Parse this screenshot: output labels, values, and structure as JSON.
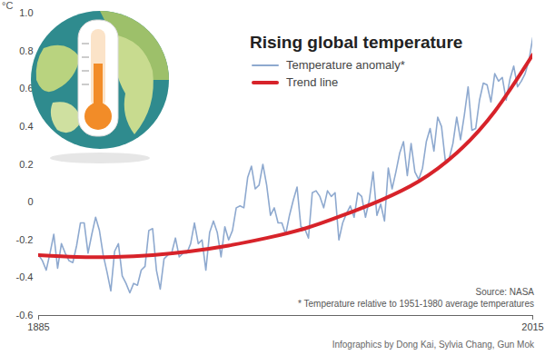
{
  "chart_data": {
    "type": "line",
    "title": "Rising global temperature",
    "y_label": "°C",
    "x": [
      1885,
      1886,
      1887,
      1888,
      1889,
      1890,
      1891,
      1892,
      1893,
      1894,
      1895,
      1896,
      1897,
      1898,
      1899,
      1900,
      1901,
      1902,
      1903,
      1904,
      1905,
      1906,
      1907,
      1908,
      1909,
      1910,
      1911,
      1912,
      1913,
      1914,
      1915,
      1916,
      1917,
      1918,
      1919,
      1920,
      1921,
      1922,
      1923,
      1924,
      1925,
      1926,
      1927,
      1928,
      1929,
      1930,
      1931,
      1932,
      1933,
      1934,
      1935,
      1936,
      1937,
      1938,
      1939,
      1940,
      1941,
      1942,
      1943,
      1944,
      1945,
      1946,
      1947,
      1948,
      1949,
      1950,
      1951,
      1952,
      1953,
      1954,
      1955,
      1956,
      1957,
      1958,
      1959,
      1960,
      1961,
      1962,
      1963,
      1964,
      1965,
      1966,
      1967,
      1968,
      1969,
      1970,
      1971,
      1972,
      1973,
      1974,
      1975,
      1976,
      1977,
      1978,
      1979,
      1980,
      1981,
      1982,
      1983,
      1984,
      1985,
      1986,
      1987,
      1988,
      1989,
      1990,
      1991,
      1992,
      1993,
      1994,
      1995,
      1996,
      1997,
      1998,
      1999,
      2000,
      2001,
      2002,
      2003,
      2004,
      2005,
      2006,
      2007,
      2008,
      2009,
      2010,
      2011,
      2012,
      2013,
      2014,
      2015
    ],
    "series": [
      {
        "name": "Temperature anomaly*",
        "color": "#8ea9cf",
        "line_style": "solid",
        "values": [
          -0.28,
          -0.31,
          -0.36,
          -0.27,
          -0.17,
          -0.35,
          -0.22,
          -0.27,
          -0.31,
          -0.32,
          -0.23,
          -0.11,
          -0.11,
          -0.27,
          -0.17,
          -0.08,
          -0.15,
          -0.28,
          -0.37,
          -0.47,
          -0.26,
          -0.22,
          -0.39,
          -0.43,
          -0.48,
          -0.43,
          -0.44,
          -0.36,
          -0.34,
          -0.15,
          -0.14,
          -0.36,
          -0.46,
          -0.3,
          -0.28,
          -0.27,
          -0.19,
          -0.29,
          -0.27,
          -0.27,
          -0.22,
          -0.11,
          -0.22,
          -0.2,
          -0.36,
          -0.16,
          -0.1,
          -0.16,
          -0.29,
          -0.13,
          -0.2,
          -0.15,
          -0.03,
          -0.02,
          -0.03,
          0.13,
          0.19,
          0.07,
          0.09,
          0.2,
          0.09,
          -0.07,
          -0.03,
          -0.11,
          -0.11,
          -0.17,
          -0.07,
          0.01,
          0.08,
          -0.13,
          -0.14,
          -0.19,
          0.05,
          0.06,
          0.03,
          -0.03,
          0.06,
          0.03,
          0.05,
          -0.2,
          -0.11,
          -0.06,
          -0.02,
          -0.08,
          0.05,
          0.03,
          -0.08,
          0.01,
          0.16,
          -0.07,
          -0.01,
          -0.1,
          0.18,
          0.07,
          0.16,
          0.26,
          0.32,
          0.14,
          0.31,
          0.16,
          0.12,
          0.18,
          0.32,
          0.39,
          0.27,
          0.45,
          0.4,
          0.22,
          0.23,
          0.31,
          0.45,
          0.33,
          0.46,
          0.61,
          0.38,
          0.39,
          0.54,
          0.63,
          0.62,
          0.53,
          0.68,
          0.64,
          0.66,
          0.54,
          0.65,
          0.72,
          0.61,
          0.64,
          0.68,
          0.75,
          0.87
        ]
      },
      {
        "name": "Trend line",
        "color": "#d7232a",
        "line_style": "smooth",
        "x": [
          1885,
          1895,
          1905,
          1915,
          1925,
          1935,
          1945,
          1955,
          1965,
          1975,
          1985,
          1995,
          2005,
          2015
        ],
        "values": [
          -0.28,
          -0.29,
          -0.29,
          -0.28,
          -0.26,
          -0.23,
          -0.19,
          -0.14,
          -0.07,
          0.01,
          0.11,
          0.26,
          0.48,
          0.78
        ]
      }
    ],
    "xlim": [
      1885,
      2015
    ],
    "xticks": [
      1885,
      2015
    ],
    "ylim": [
      -0.6,
      1
    ],
    "yticks": [
      -0.6,
      -0.4,
      -0.2,
      0,
      0.2,
      0.4,
      0.6,
      0.8,
      {
        "value": 1,
        "label": "1.0"
      }
    ],
    "grid": false,
    "legend": "top-right",
    "annotations": [
      "Source: NASA",
      "* Temperature relative to 1951-1980 average temperatures"
    ],
    "credit": "Infographics by Dong Kai, Sylvia Chang, Gun Mok"
  }
}
